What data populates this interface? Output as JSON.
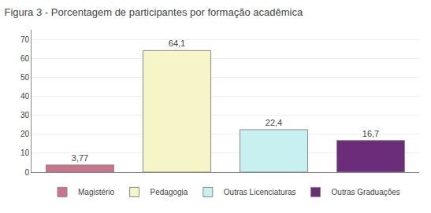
{
  "chart_data": {
    "type": "bar",
    "title": "Figura 3 - Porcentagem de participantes por formação acadêmica",
    "categories": [
      "Magistério",
      "Pedagogia",
      "Outras Licenciaturas",
      "Outras Graduações"
    ],
    "values": [
      3.77,
      64.1,
      22.4,
      16.7
    ],
    "value_labels": [
      "3,77",
      "64,1",
      "22,4",
      "16,7"
    ],
    "colors": [
      "#c8748a",
      "#f5f5c8",
      "#c8f0f0",
      "#6b2c7a"
    ],
    "ylim": [
      0,
      75
    ],
    "yticks": [
      0,
      10,
      20,
      30,
      40,
      50,
      60,
      70
    ],
    "grid": true,
    "legend": "bottom",
    "data_labels": true,
    "tick_labels": "y"
  }
}
